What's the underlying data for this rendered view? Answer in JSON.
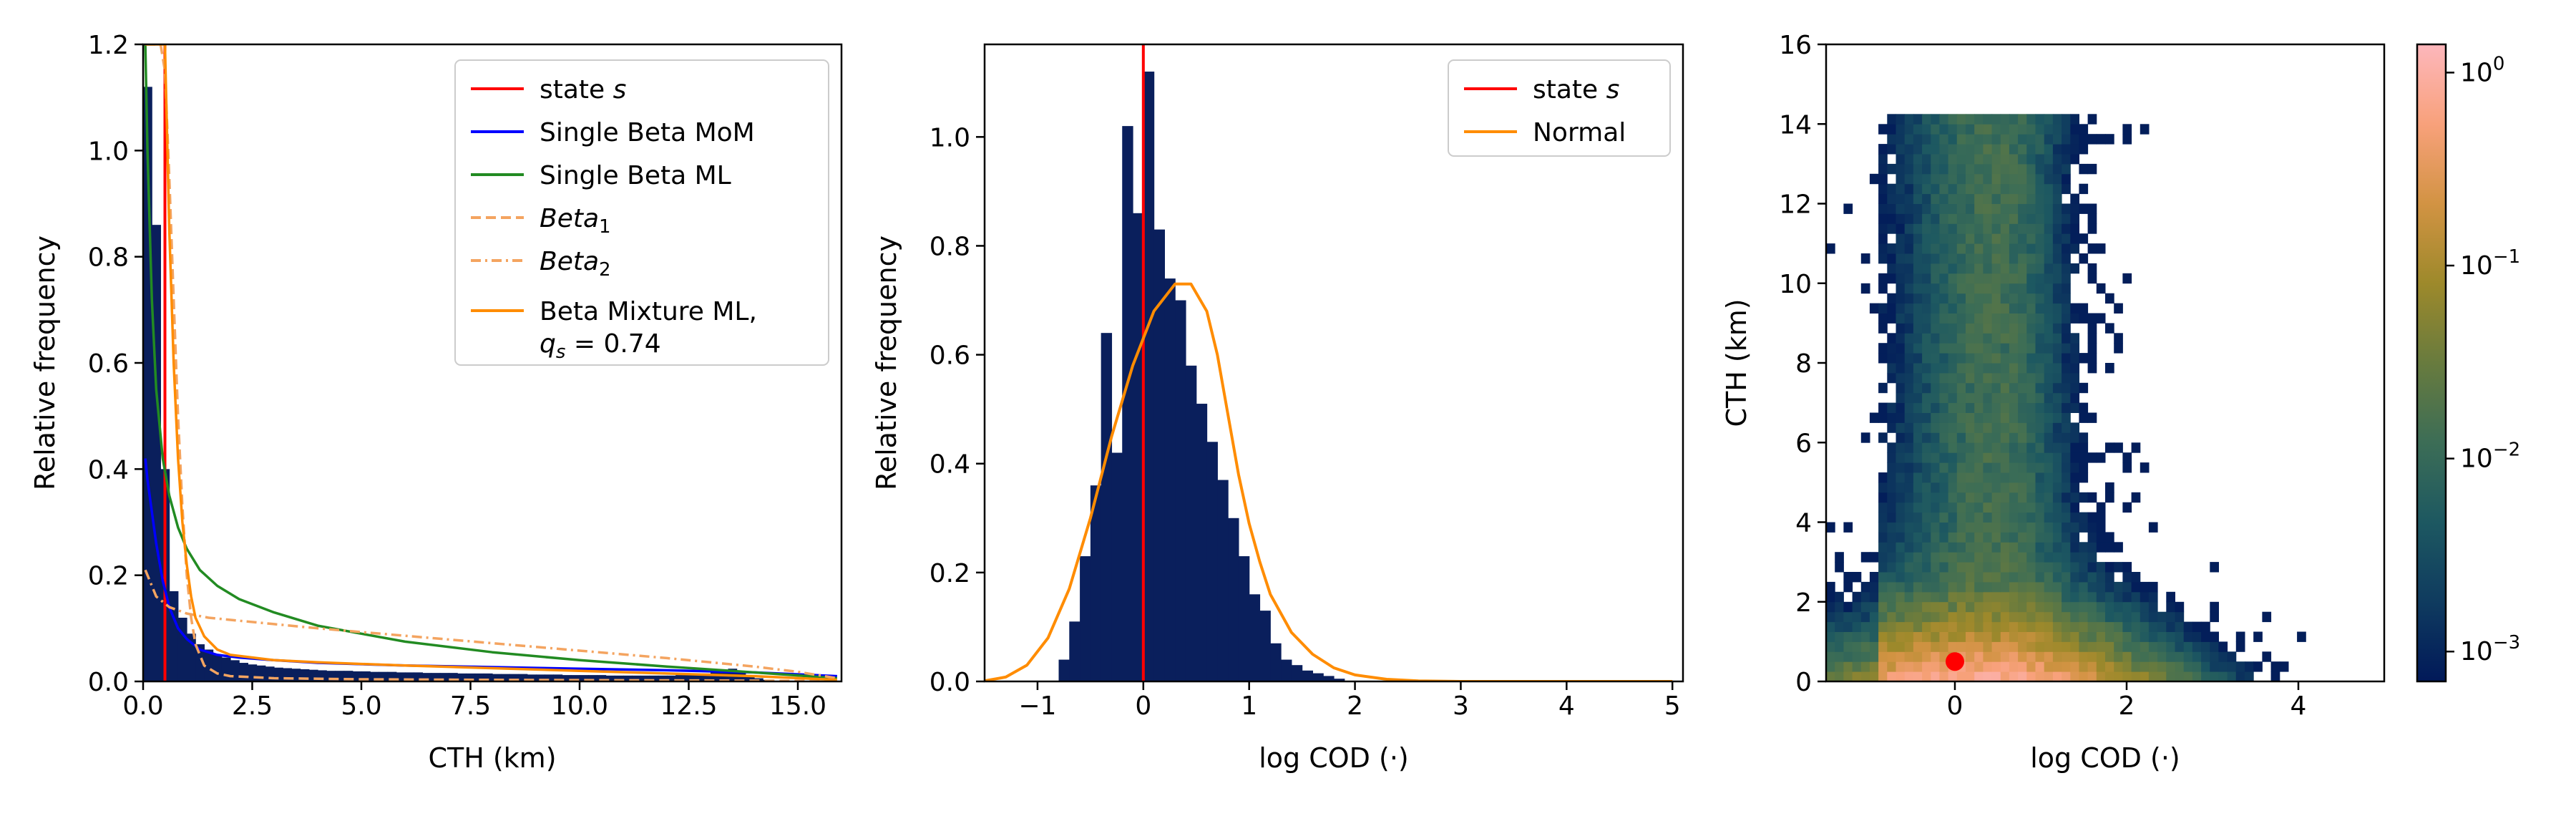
{
  "chart_data": [
    {
      "type": "histogram+line",
      "xlabel": "CTH (km)",
      "ylabel": "Relative frequency",
      "xlim": [
        0,
        16
      ],
      "ylim": [
        0,
        1.2
      ],
      "xticks": [
        "0.0",
        "2.5",
        "5.0",
        "7.5",
        "10.0",
        "12.5",
        "15.0"
      ],
      "yticks": [
        "0.0",
        "0.2",
        "0.4",
        "0.6",
        "0.8",
        "1.0",
        "1.2"
      ],
      "legend_position": "upper-right",
      "histogram": {
        "bin_width": 0.2,
        "values": [
          1.12,
          0.86,
          0.4,
          0.17,
          0.12,
          0.09,
          0.07,
          0.06,
          0.05,
          0.045,
          0.04,
          0.035,
          0.032,
          0.03,
          0.028,
          0.026,
          0.025,
          0.024,
          0.023,
          0.022,
          0.021,
          0.02,
          0.02,
          0.02,
          0.019,
          0.019,
          0.018,
          0.018,
          0.018,
          0.017,
          0.017,
          0.017,
          0.016,
          0.016,
          0.016,
          0.016,
          0.015,
          0.015,
          0.015,
          0.015,
          0.014,
          0.014,
          0.014,
          0.014,
          0.013,
          0.013,
          0.013,
          0.013,
          0.012,
          0.012,
          0.012,
          0.012,
          0.012,
          0.011,
          0.011,
          0.011,
          0.011,
          0.011,
          0.011,
          0.011,
          0.011,
          0.012,
          0.012,
          0.013,
          0.015,
          0.018,
          0.022,
          0.024,
          0.02,
          0.012,
          0.006,
          0.003,
          0.001,
          0.0,
          0.0,
          0.0,
          0.0,
          0.0,
          0.0,
          0.0
        ]
      },
      "state_line_x": 0.5,
      "series": [
        {
          "label": "state ",
          "label_italic": "s",
          "color": "#ff0000",
          "style": "solid",
          "kind": "vline"
        },
        {
          "label": "Single Beta MoM",
          "color": "#0000ff",
          "style": "solid",
          "x": [
            0.05,
            0.1,
            0.2,
            0.3,
            0.45,
            0.6,
            0.8,
            1.0,
            1.3,
            1.7,
            2.2,
            3.0,
            4.0,
            6.0,
            8.0,
            10.0,
            12.0,
            14.0,
            15.9
          ],
          "y": [
            0.42,
            0.38,
            0.32,
            0.26,
            0.19,
            0.14,
            0.1,
            0.08,
            0.06,
            0.05,
            0.045,
            0.04,
            0.035,
            0.03,
            0.027,
            0.024,
            0.021,
            0.017,
            0.01
          ]
        },
        {
          "label": "Single Beta ML",
          "color": "#228b22",
          "style": "solid",
          "x": [
            0.05,
            0.1,
            0.2,
            0.3,
            0.45,
            0.6,
            0.8,
            1.0,
            1.3,
            1.7,
            2.2,
            3.0,
            4.0,
            5.0,
            6.0,
            8.0,
            10.0,
            12.0,
            14.0,
            15.9
          ],
          "y": [
            1.2,
            1.0,
            0.72,
            0.55,
            0.42,
            0.35,
            0.29,
            0.25,
            0.21,
            0.18,
            0.155,
            0.13,
            0.105,
            0.09,
            0.075,
            0.055,
            0.04,
            0.028,
            0.017,
            0.006
          ]
        },
        {
          "label": "Beta",
          "label_sub": "1",
          "color": "#f4a460",
          "style": "dashed",
          "x": [
            0.05,
            0.1,
            0.2,
            0.3,
            0.4,
            0.5,
            0.6,
            0.7,
            0.8,
            0.9,
            1.0,
            1.1,
            1.2,
            1.4,
            1.7,
            2.0,
            3.0,
            5.0,
            8.0,
            12.0,
            15.9
          ],
          "y": [
            1.2,
            1.2,
            1.2,
            1.2,
            1.2,
            1.15,
            0.95,
            0.72,
            0.5,
            0.33,
            0.2,
            0.12,
            0.07,
            0.03,
            0.015,
            0.01,
            0.006,
            0.004,
            0.003,
            0.002,
            0.001
          ]
        },
        {
          "label": "Beta",
          "label_sub": "2",
          "color": "#f4a460",
          "style": "dashdot",
          "x": [
            0.05,
            0.3,
            0.6,
            1.0,
            1.5,
            2.0,
            3.0,
            4.0,
            5.0,
            6.0,
            7.0,
            8.0,
            9.0,
            10.0,
            11.0,
            12.0,
            13.0,
            14.0,
            15.0,
            15.9
          ],
          "y": [
            0.21,
            0.16,
            0.14,
            0.128,
            0.12,
            0.116,
            0.108,
            0.1,
            0.093,
            0.086,
            0.079,
            0.072,
            0.065,
            0.058,
            0.051,
            0.044,
            0.036,
            0.028,
            0.018,
            0.006
          ]
        },
        {
          "label": "Beta Mixture ML,",
          "label_line2": "q_s = 0.74",
          "color": "#ff8c00",
          "style": "solid",
          "x": [
            0.05,
            0.1,
            0.2,
            0.3,
            0.4,
            0.5,
            0.6,
            0.7,
            0.8,
            0.9,
            1.0,
            1.1,
            1.2,
            1.4,
            1.7,
            2.0,
            3.0,
            4.0,
            6.0,
            8.0,
            10.0,
            12.0,
            14.0,
            15.9
          ],
          "y": [
            1.2,
            1.2,
            1.2,
            1.2,
            1.2,
            1.2,
            0.85,
            0.6,
            0.42,
            0.3,
            0.22,
            0.16,
            0.12,
            0.085,
            0.06,
            0.05,
            0.04,
            0.036,
            0.03,
            0.025,
            0.02,
            0.015,
            0.01,
            0.003
          ]
        }
      ]
    },
    {
      "type": "histogram+line",
      "xlabel": "log COD (·)",
      "ylabel": "Relative frequency",
      "xlim": [
        -1.5,
        5.1
      ],
      "ylim": [
        0,
        1.17
      ],
      "xticks": [
        "−1",
        "0",
        "1",
        "2",
        "3",
        "4",
        "5"
      ],
      "xtick_values": [
        -1,
        0,
        1,
        2,
        3,
        4,
        5
      ],
      "yticks": [
        "0.0",
        "0.2",
        "0.4",
        "0.6",
        "0.8",
        "1.0"
      ],
      "legend_position": "upper-right",
      "histogram": {
        "bin_start": -0.8,
        "bin_width": 0.1,
        "values": [
          0.04,
          0.11,
          0.23,
          0.36,
          0.64,
          0.42,
          1.02,
          0.86,
          1.12,
          0.83,
          0.74,
          0.7,
          0.58,
          0.51,
          0.44,
          0.37,
          0.3,
          0.23,
          0.16,
          0.13,
          0.07,
          0.04,
          0.03,
          0.02,
          0.015,
          0.01,
          0.005
        ]
      },
      "state_line_x": 0.0,
      "series": [
        {
          "label": "state ",
          "label_italic": "s",
          "color": "#ff0000",
          "style": "solid",
          "kind": "vline"
        },
        {
          "label": "Normal",
          "color": "#ff8c00",
          "style": "solid",
          "x": [
            -1.5,
            -1.3,
            -1.1,
            -0.9,
            -0.7,
            -0.5,
            -0.3,
            -0.1,
            0.1,
            0.3,
            0.45,
            0.6,
            0.7,
            0.8,
            0.9,
            1.0,
            1.1,
            1.2,
            1.4,
            1.6,
            1.8,
            2.0,
            2.3,
            2.6,
            3.0,
            4.0,
            5.0
          ],
          "y": [
            0.001,
            0.008,
            0.03,
            0.08,
            0.17,
            0.3,
            0.45,
            0.58,
            0.68,
            0.73,
            0.73,
            0.68,
            0.6,
            0.49,
            0.38,
            0.29,
            0.22,
            0.16,
            0.09,
            0.05,
            0.025,
            0.012,
            0.004,
            0.001,
            0.0,
            0.0,
            0.0
          ]
        }
      ]
    },
    {
      "type": "heatmap",
      "xlabel": "log COD (·)",
      "ylabel": "CTH (km)",
      "xlim": [
        -1.5,
        5.0
      ],
      "ylim": [
        0,
        16
      ],
      "xticks": [
        "0",
        "2",
        "4"
      ],
      "xtick_values": [
        0,
        2,
        4
      ],
      "yticks": [
        "0",
        "2",
        "4",
        "6",
        "8",
        "10",
        "12",
        "14",
        "16"
      ],
      "colorbar": {
        "scale": "log",
        "range": [
          0.0007,
          1.4
        ],
        "ticks": [
          {
            "base": "10",
            "exp": "0"
          },
          {
            "base": "10",
            "exp": "−1"
          },
          {
            "base": "10",
            "exp": "−2"
          },
          {
            "base": "10",
            "exp": "−3"
          }
        ],
        "tick_values": [
          1,
          0.1,
          0.01,
          0.001
        ],
        "colormap": "batlow"
      },
      "bins": {
        "x_min": -1.5,
        "x_max": 5.0,
        "x_count": 64,
        "y_min": 0,
        "y_max": 16,
        "y_count": 64
      },
      "state_point": {
        "x": 0.0,
        "y": 0.5,
        "color": "#ff0000"
      }
    }
  ]
}
